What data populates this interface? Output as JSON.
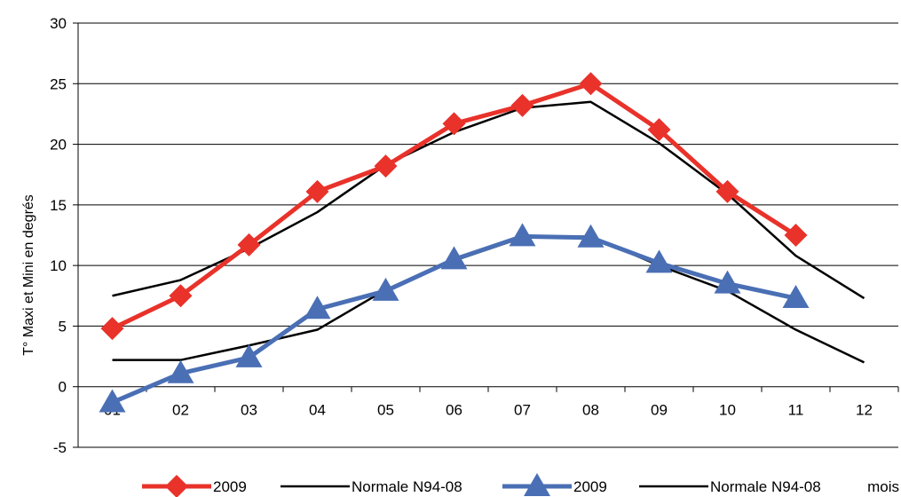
{
  "chart_data": {
    "type": "line",
    "title": "",
    "ylabel": "T° Maxi et Mini en degrés",
    "xlabel": "mois",
    "categories": [
      "01",
      "02",
      "03",
      "04",
      "05",
      "06",
      "07",
      "08",
      "09",
      "10",
      "11",
      "12"
    ],
    "ylim": [
      -5,
      30
    ],
    "yticks": [
      -5,
      0,
      5,
      10,
      15,
      20,
      25,
      30
    ],
    "grid": true,
    "legend_position": "bottom",
    "series": [
      {
        "name": "2009",
        "role": "maxi",
        "color": "#e8322a",
        "marker": "diamond",
        "style": "thick",
        "values": [
          4.8,
          7.5,
          11.7,
          16.1,
          18.2,
          21.7,
          23.2,
          25.0,
          21.2,
          16.1,
          12.5,
          null
        ]
      },
      {
        "name": "Normale N94-08",
        "role": "maxi-normal",
        "color": "#000000",
        "marker": "none",
        "style": "thin",
        "values": [
          7.5,
          8.8,
          11.4,
          14.4,
          18.3,
          21.0,
          23.0,
          23.5,
          20.1,
          15.9,
          10.8,
          7.3
        ]
      },
      {
        "name": "2009",
        "role": "mini",
        "color": "#4a6fb5",
        "marker": "triangle",
        "style": "thick",
        "values": [
          -1.3,
          1.1,
          2.4,
          6.4,
          7.9,
          10.5,
          12.4,
          12.3,
          10.2,
          8.5,
          7.3,
          null
        ]
      },
      {
        "name": "Normale N94-08",
        "role": "mini-normal",
        "color": "#000000",
        "marker": "none",
        "style": "thin",
        "values": [
          2.2,
          2.2,
          3.4,
          4.7,
          8.0,
          10.4,
          12.3,
          12.4,
          10.0,
          7.9,
          4.7,
          2.0
        ]
      }
    ]
  }
}
